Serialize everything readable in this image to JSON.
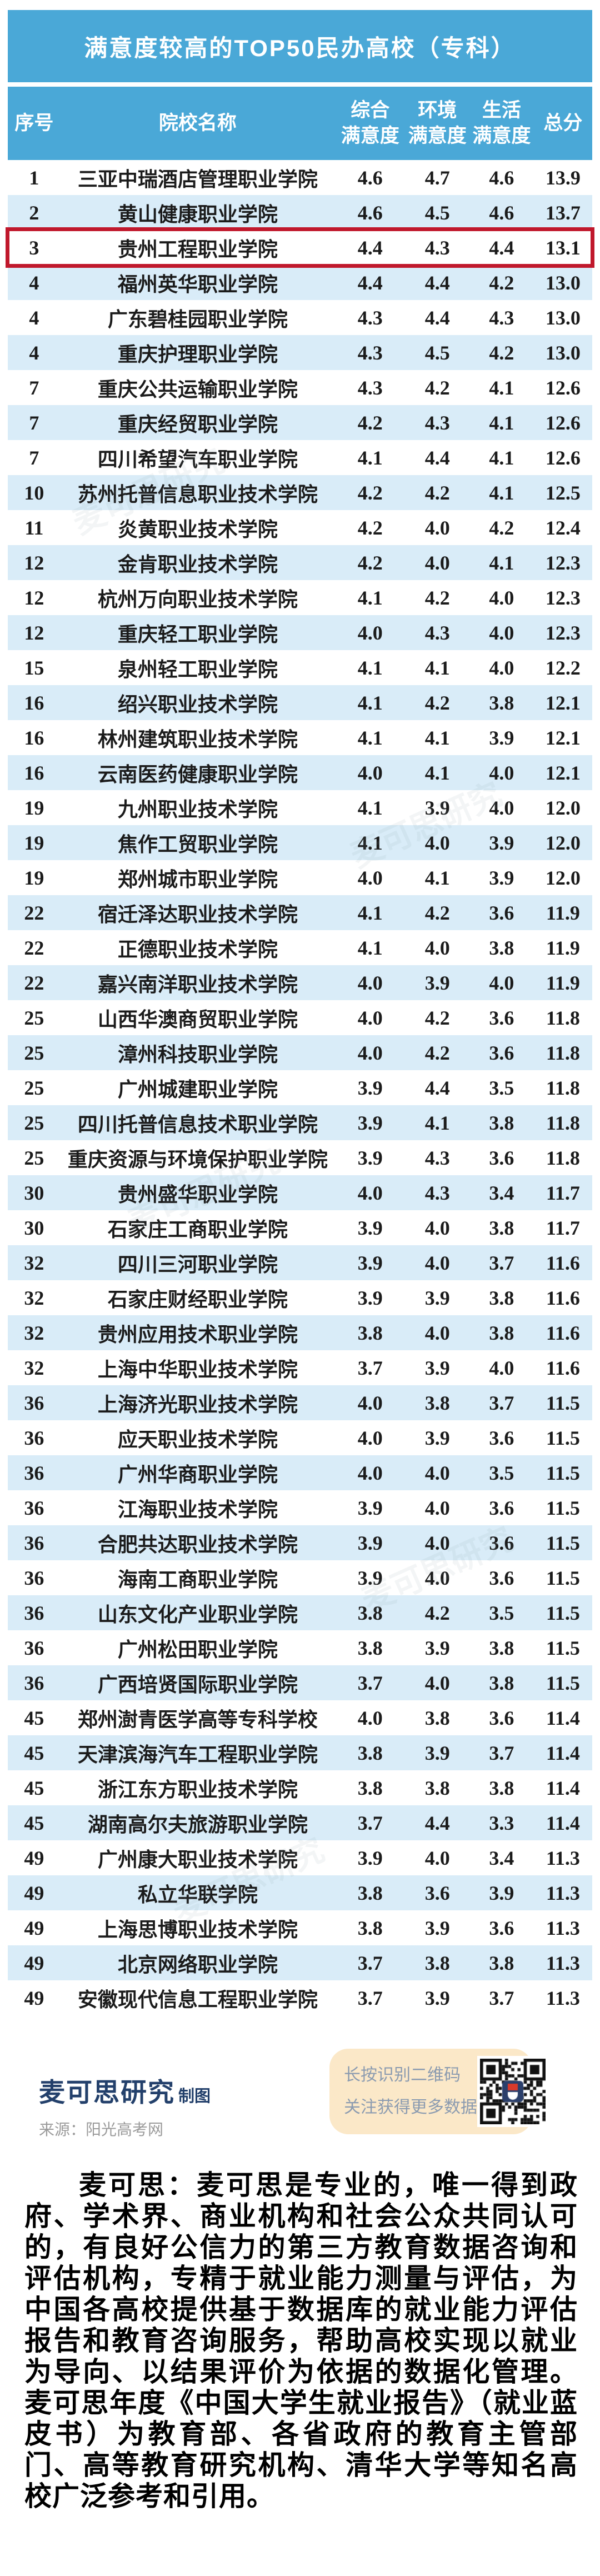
{
  "title": "满意度较高的TOP50民办高校（专科）",
  "colors": {
    "accent_blue": "#4aa8d7",
    "row_alt_blue": "#d9ecf8",
    "highlight_red": "#c0182c",
    "brand_navy": "#23406b",
    "qr_box_bg": "#fbe8c8",
    "qr_text_gray_blue": "#8b9bb0",
    "source_gray": "#9b9b9b"
  },
  "watermark": "麦可思研究",
  "table": {
    "columns": [
      {
        "label": "序号"
      },
      {
        "label": "院校名称"
      },
      {
        "label": "综合满意度",
        "line1": "综合",
        "line2": "满意度"
      },
      {
        "label": "环境满意度",
        "line1": "环境",
        "line2": "满意度"
      },
      {
        "label": "生活满意度",
        "line1": "生活",
        "line2": "满意度"
      },
      {
        "label": "总分"
      }
    ],
    "rows": [
      {
        "rank": "1",
        "name": "三亚中瑞酒店管理职业学院",
        "overall": "4.6",
        "environment": "4.7",
        "life": "4.6",
        "total": "13.9",
        "highlight": false
      },
      {
        "rank": "2",
        "name": "黄山健康职业学院",
        "overall": "4.6",
        "environment": "4.5",
        "life": "4.6",
        "total": "13.7",
        "highlight": false
      },
      {
        "rank": "3",
        "name": "贵州工程职业学院",
        "overall": "4.4",
        "environment": "4.3",
        "life": "4.4",
        "total": "13.1",
        "highlight": true
      },
      {
        "rank": "4",
        "name": "福州英华职业学院",
        "overall": "4.4",
        "environment": "4.4",
        "life": "4.2",
        "total": "13.0",
        "highlight": false
      },
      {
        "rank": "4",
        "name": "广东碧桂园职业学院",
        "overall": "4.3",
        "environment": "4.4",
        "life": "4.3",
        "total": "13.0",
        "highlight": false
      },
      {
        "rank": "4",
        "name": "重庆护理职业学院",
        "overall": "4.3",
        "environment": "4.5",
        "life": "4.2",
        "total": "13.0",
        "highlight": false
      },
      {
        "rank": "7",
        "name": "重庆公共运输职业学院",
        "overall": "4.3",
        "environment": "4.2",
        "life": "4.1",
        "total": "12.6",
        "highlight": false
      },
      {
        "rank": "7",
        "name": "重庆经贸职业学院",
        "overall": "4.2",
        "environment": "4.3",
        "life": "4.1",
        "total": "12.6",
        "highlight": false
      },
      {
        "rank": "7",
        "name": "四川希望汽车职业学院",
        "overall": "4.1",
        "environment": "4.4",
        "life": "4.1",
        "total": "12.6",
        "highlight": false
      },
      {
        "rank": "10",
        "name": "苏州托普信息职业技术学院",
        "overall": "4.2",
        "environment": "4.2",
        "life": "4.1",
        "total": "12.5",
        "highlight": false
      },
      {
        "rank": "11",
        "name": "炎黄职业技术学院",
        "overall": "4.2",
        "environment": "4.0",
        "life": "4.2",
        "total": "12.4",
        "highlight": false
      },
      {
        "rank": "12",
        "name": "金肯职业技术学院",
        "overall": "4.2",
        "environment": "4.0",
        "life": "4.1",
        "total": "12.3",
        "highlight": false
      },
      {
        "rank": "12",
        "name": "杭州万向职业技术学院",
        "overall": "4.1",
        "environment": "4.2",
        "life": "4.0",
        "total": "12.3",
        "highlight": false
      },
      {
        "rank": "12",
        "name": "重庆轻工职业学院",
        "overall": "4.0",
        "environment": "4.3",
        "life": "4.0",
        "total": "12.3",
        "highlight": false
      },
      {
        "rank": "15",
        "name": "泉州轻工职业学院",
        "overall": "4.1",
        "environment": "4.1",
        "life": "4.0",
        "total": "12.2",
        "highlight": false
      },
      {
        "rank": "16",
        "name": "绍兴职业技术学院",
        "overall": "4.1",
        "environment": "4.2",
        "life": "3.8",
        "total": "12.1",
        "highlight": false
      },
      {
        "rank": "16",
        "name": "林州建筑职业技术学院",
        "overall": "4.1",
        "environment": "4.1",
        "life": "3.9",
        "total": "12.1",
        "highlight": false
      },
      {
        "rank": "16",
        "name": "云南医药健康职业学院",
        "overall": "4.0",
        "environment": "4.1",
        "life": "4.0",
        "total": "12.1",
        "highlight": false
      },
      {
        "rank": "19",
        "name": "九州职业技术学院",
        "overall": "4.1",
        "environment": "3.9",
        "life": "4.0",
        "total": "12.0",
        "highlight": false
      },
      {
        "rank": "19",
        "name": "焦作工贸职业学院",
        "overall": "4.1",
        "environment": "4.0",
        "life": "3.9",
        "total": "12.0",
        "highlight": false
      },
      {
        "rank": "19",
        "name": "郑州城市职业学院",
        "overall": "4.0",
        "environment": "4.1",
        "life": "3.9",
        "total": "12.0",
        "highlight": false
      },
      {
        "rank": "22",
        "name": "宿迁泽达职业技术学院",
        "overall": "4.1",
        "environment": "4.2",
        "life": "3.6",
        "total": "11.9",
        "highlight": false
      },
      {
        "rank": "22",
        "name": "正德职业技术学院",
        "overall": "4.1",
        "environment": "4.0",
        "life": "3.8",
        "total": "11.9",
        "highlight": false
      },
      {
        "rank": "22",
        "name": "嘉兴南洋职业技术学院",
        "overall": "4.0",
        "environment": "3.9",
        "life": "4.0",
        "total": "11.9",
        "highlight": false
      },
      {
        "rank": "25",
        "name": "山西华澳商贸职业学院",
        "overall": "4.0",
        "environment": "4.2",
        "life": "3.6",
        "total": "11.8",
        "highlight": false
      },
      {
        "rank": "25",
        "name": "漳州科技职业学院",
        "overall": "4.0",
        "environment": "4.2",
        "life": "3.6",
        "total": "11.8",
        "highlight": false
      },
      {
        "rank": "25",
        "name": "广州城建职业学院",
        "overall": "3.9",
        "environment": "4.4",
        "life": "3.5",
        "total": "11.8",
        "highlight": false
      },
      {
        "rank": "25",
        "name": "四川托普信息技术职业学院",
        "overall": "3.9",
        "environment": "4.1",
        "life": "3.8",
        "total": "11.8",
        "highlight": false
      },
      {
        "rank": "25",
        "name": "重庆资源与环境保护职业学院",
        "overall": "3.9",
        "environment": "4.3",
        "life": "3.6",
        "total": "11.8",
        "highlight": false
      },
      {
        "rank": "30",
        "name": "贵州盛华职业学院",
        "overall": "4.0",
        "environment": "4.3",
        "life": "3.4",
        "total": "11.7",
        "highlight": false
      },
      {
        "rank": "30",
        "name": "石家庄工商职业学院",
        "overall": "3.9",
        "environment": "4.0",
        "life": "3.8",
        "total": "11.7",
        "highlight": false
      },
      {
        "rank": "32",
        "name": "四川三河职业学院",
        "overall": "3.9",
        "environment": "4.0",
        "life": "3.7",
        "total": "11.6",
        "highlight": false
      },
      {
        "rank": "32",
        "name": "石家庄财经职业学院",
        "overall": "3.9",
        "environment": "3.9",
        "life": "3.8",
        "total": "11.6",
        "highlight": false
      },
      {
        "rank": "32",
        "name": "贵州应用技术职业学院",
        "overall": "3.8",
        "environment": "4.0",
        "life": "3.8",
        "total": "11.6",
        "highlight": false
      },
      {
        "rank": "32",
        "name": "上海中华职业技术学院",
        "overall": "3.7",
        "environment": "3.9",
        "life": "4.0",
        "total": "11.6",
        "highlight": false
      },
      {
        "rank": "36",
        "name": "上海济光职业技术学院",
        "overall": "4.0",
        "environment": "3.8",
        "life": "3.7",
        "total": "11.5",
        "highlight": false
      },
      {
        "rank": "36",
        "name": "应天职业技术学院",
        "overall": "4.0",
        "environment": "3.9",
        "life": "3.6",
        "total": "11.5",
        "highlight": false
      },
      {
        "rank": "36",
        "name": "广州华商职业学院",
        "overall": "4.0",
        "environment": "4.0",
        "life": "3.5",
        "total": "11.5",
        "highlight": false
      },
      {
        "rank": "36",
        "name": "江海职业技术学院",
        "overall": "3.9",
        "environment": "4.0",
        "life": "3.6",
        "total": "11.5",
        "highlight": false
      },
      {
        "rank": "36",
        "name": "合肥共达职业技术学院",
        "overall": "3.9",
        "environment": "4.0",
        "life": "3.6",
        "total": "11.5",
        "highlight": false
      },
      {
        "rank": "36",
        "name": "海南工商职业学院",
        "overall": "3.9",
        "environment": "4.0",
        "life": "3.6",
        "total": "11.5",
        "highlight": false
      },
      {
        "rank": "36",
        "name": "山东文化产业职业学院",
        "overall": "3.8",
        "environment": "4.2",
        "life": "3.5",
        "total": "11.5",
        "highlight": false
      },
      {
        "rank": "36",
        "name": "广州松田职业学院",
        "overall": "3.8",
        "environment": "3.9",
        "life": "3.8",
        "total": "11.5",
        "highlight": false
      },
      {
        "rank": "36",
        "name": "广西培贤国际职业学院",
        "overall": "3.7",
        "environment": "4.0",
        "life": "3.8",
        "total": "11.5",
        "highlight": false
      },
      {
        "rank": "45",
        "name": "郑州澍青医学高等专科学校",
        "overall": "4.0",
        "environment": "3.8",
        "life": "3.6",
        "total": "11.4",
        "highlight": false
      },
      {
        "rank": "45",
        "name": "天津滨海汽车工程职业学院",
        "overall": "3.8",
        "environment": "3.9",
        "life": "3.7",
        "total": "11.4",
        "highlight": false
      },
      {
        "rank": "45",
        "name": "浙江东方职业技术学院",
        "overall": "3.8",
        "environment": "3.8",
        "life": "3.8",
        "total": "11.4",
        "highlight": false
      },
      {
        "rank": "45",
        "name": "湖南高尔夫旅游职业学院",
        "overall": "3.7",
        "environment": "4.4",
        "life": "3.3",
        "total": "11.4",
        "highlight": false
      },
      {
        "rank": "49",
        "name": "广州康大职业技术学院",
        "overall": "3.9",
        "environment": "4.0",
        "life": "3.4",
        "total": "11.3",
        "highlight": false
      },
      {
        "rank": "49",
        "name": "私立华联学院",
        "overall": "3.8",
        "environment": "3.6",
        "life": "3.9",
        "total": "11.3",
        "highlight": false
      },
      {
        "rank": "49",
        "name": "上海思博职业技术学院",
        "overall": "3.8",
        "environment": "3.9",
        "life": "3.6",
        "total": "11.3",
        "highlight": false
      },
      {
        "rank": "49",
        "name": "北京网络职业学院",
        "overall": "3.7",
        "environment": "3.8",
        "life": "3.8",
        "total": "11.3",
        "highlight": false
      },
      {
        "rank": "49",
        "name": "安徽现代信息工程职业学院",
        "overall": "3.7",
        "environment": "3.9",
        "life": "3.7",
        "total": "11.3",
        "highlight": false
      }
    ]
  },
  "footer": {
    "brand": "麦可思研究",
    "brand_suffix": "制图",
    "source": "来源：阳光高考网",
    "qr_line1": "长按识别二维码",
    "qr_line2": "关注获得更多数据"
  },
  "about": "麦可思：麦可思是专业的，唯一得到政府、学术界、商业机构和社会公众共同认可的，有良好公信力的第三方教育数据咨询和评估机构，专精于就业能力测量与评估，为中国各高校提供基于数据库的就业能力评估报告和教育咨询服务，帮助高校实现以就业为导向、以结果评价为依据的数据化管理。麦可思年度《中国大学生就业报告》（就业蓝皮书）为教育部、各省政府的教育主管部门、高等教育研究机构、清华大学等知名高校广泛参考和引用。"
}
